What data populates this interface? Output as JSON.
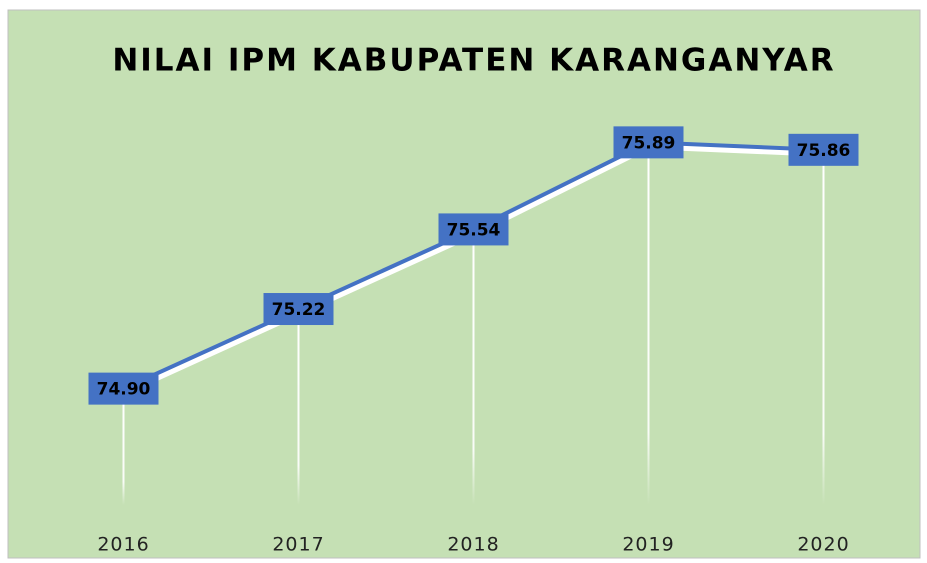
{
  "chart_data": {
    "type": "line",
    "title": "NILAI IPM KABUPATEN KARANGANYAR",
    "categories": [
      "2016",
      "2017",
      "2018",
      "2019",
      "2020"
    ],
    "series": [
      {
        "name": "IPM",
        "color": "#4472c4",
        "values": [
          74.9,
          75.22,
          75.54,
          75.89,
          75.86
        ],
        "value_labels": [
          "74.90",
          "75.22",
          "75.54",
          "75.89",
          "75.86"
        ]
      }
    ],
    "ylim": [
      74.4,
      76.0
    ],
    "drop_lines": true,
    "background": "#c5e0b4"
  }
}
